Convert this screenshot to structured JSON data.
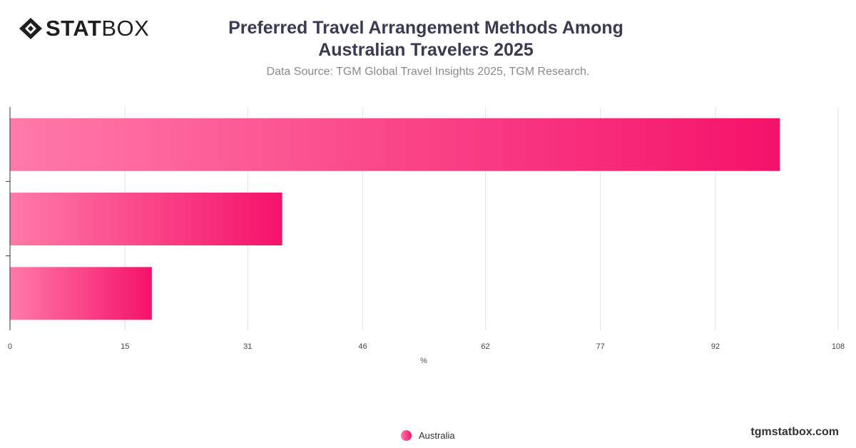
{
  "brand": {
    "logo_bold": "STAT",
    "logo_light": "BOX",
    "site": "tgmstatbox.com"
  },
  "colors": {
    "bar_start": "#ff7aa8",
    "bar_end": "#f5126a",
    "grid": "#e2e2e2",
    "axis": "#333333"
  },
  "chart_data": {
    "type": "bar",
    "orientation": "horizontal",
    "title_line1": "Preferred Travel Arrangement Methods Among",
    "title_line2": "Australian Travelers 2025",
    "subtitle": "Data Source: TGM Global Travel Insights 2025, TGM Research.",
    "categories": [
      "",
      "",
      ""
    ],
    "series": [
      {
        "name": "Australia",
        "values": [
          100.4,
          35.5,
          18.5
        ]
      }
    ],
    "xlabel": "%",
    "xlim": [
      0,
      108
    ],
    "xticks": [
      0,
      15,
      31,
      46,
      62,
      77,
      92,
      108
    ],
    "grid": true,
    "legend_position": "bottom"
  }
}
